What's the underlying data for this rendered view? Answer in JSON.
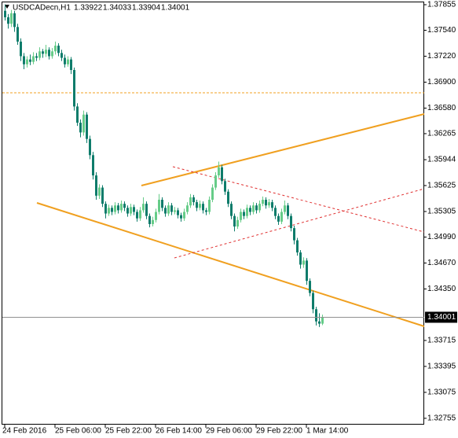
{
  "chart_data": {
    "type": "candlestick",
    "symbol": "USDCADecn,H1",
    "categories": [
      "24 Feb 2016",
      null,
      null,
      null,
      null,
      null,
      null,
      null,
      null,
      null,
      null,
      null,
      null,
      null,
      null,
      null,
      "25 Feb 06:00",
      null,
      null,
      null,
      null,
      null,
      null,
      null,
      null,
      null,
      null,
      null,
      null,
      null,
      null,
      null,
      "25 Feb 22:00",
      null,
      null,
      null,
      null,
      null,
      null,
      null,
      null,
      null,
      null,
      null,
      null,
      null,
      null,
      null,
      "26 Feb 14:00",
      null,
      null,
      null,
      null,
      null,
      null,
      null,
      null,
      null,
      null,
      null,
      null,
      null,
      null,
      null,
      "29 Feb 06:00",
      null,
      null,
      null,
      null,
      null,
      null,
      null,
      null,
      null,
      null,
      null,
      null,
      null,
      null,
      null,
      "29 Feb 22:00",
      null,
      null,
      null,
      null,
      null,
      null,
      null,
      null,
      null,
      null,
      null,
      null,
      null,
      null,
      null,
      "1 Mar 14:00",
      null,
      null,
      null,
      null,
      null
    ],
    "candles": [
      [
        1.3778,
        1.3786,
        1.3766,
        1.377
      ],
      [
        1.377,
        1.3774,
        1.3756,
        1.3762
      ],
      [
        1.3762,
        1.3779,
        1.3758,
        1.3775
      ],
      [
        1.3775,
        1.3778,
        1.3752,
        1.3758
      ],
      [
        1.3758,
        1.3762,
        1.3736,
        1.374
      ],
      [
        1.374,
        1.3744,
        1.3716,
        1.3722
      ],
      [
        1.3722,
        1.3726,
        1.3706,
        1.3712
      ],
      [
        1.3712,
        1.3722,
        1.3708,
        1.3718
      ],
      [
        1.3718,
        1.3724,
        1.3711,
        1.3715
      ],
      [
        1.3715,
        1.3727,
        1.3712,
        1.3722
      ],
      [
        1.3722,
        1.3726,
        1.3716,
        1.372
      ],
      [
        1.372,
        1.3733,
        1.3717,
        1.3728
      ],
      [
        1.3728,
        1.3731,
        1.372,
        1.3725
      ],
      [
        1.3725,
        1.3736,
        1.3721,
        1.373
      ],
      [
        1.373,
        1.3733,
        1.3718,
        1.3722
      ],
      [
        1.3722,
        1.3732,
        1.3719,
        1.3728
      ],
      [
        1.3728,
        1.374,
        1.3724,
        1.3735
      ],
      [
        1.3735,
        1.3738,
        1.3722,
        1.3726
      ],
      [
        1.3726,
        1.373,
        1.3716,
        1.372
      ],
      [
        1.372,
        1.3724,
        1.3708,
        1.3712
      ],
      [
        1.3712,
        1.3722,
        1.3709,
        1.3718
      ],
      [
        1.3718,
        1.3721,
        1.37,
        1.3705
      ],
      [
        1.3705,
        1.3708,
        1.3655,
        1.366
      ],
      [
        1.366,
        1.3664,
        1.3636,
        1.364
      ],
      [
        1.364,
        1.3644,
        1.3622,
        1.3628
      ],
      [
        1.3628,
        1.3655,
        1.3624,
        1.365
      ],
      [
        1.365,
        1.3653,
        1.3615,
        1.362
      ],
      [
        1.362,
        1.3624,
        1.3595,
        1.36
      ],
      [
        1.36,
        1.3604,
        1.357,
        1.3575
      ],
      [
        1.3575,
        1.3579,
        1.3545,
        1.355
      ],
      [
        1.355,
        1.3564,
        1.3546,
        1.356
      ],
      [
        1.356,
        1.3563,
        1.3536,
        1.354
      ],
      [
        1.354,
        1.3543,
        1.3522,
        1.3528
      ],
      [
        1.3528,
        1.3539,
        1.3525,
        1.3535
      ],
      [
        1.3535,
        1.3538,
        1.3526,
        1.353
      ],
      [
        1.353,
        1.3542,
        1.3527,
        1.3538
      ],
      [
        1.3538,
        1.3541,
        1.3528,
        1.3532
      ],
      [
        1.3532,
        1.3544,
        1.3529,
        1.354
      ],
      [
        1.354,
        1.3543,
        1.3531,
        1.3535
      ],
      [
        1.3535,
        1.3538,
        1.3524,
        1.3528
      ],
      [
        1.3528,
        1.354,
        1.3525,
        1.3536
      ],
      [
        1.3536,
        1.3539,
        1.3526,
        1.353
      ],
      [
        1.353,
        1.3533,
        1.3518,
        1.3522
      ],
      [
        1.3522,
        1.3536,
        1.3519,
        1.3532
      ],
      [
        1.3532,
        1.3548,
        1.3529,
        1.354
      ],
      [
        1.354,
        1.3543,
        1.3521,
        1.3525
      ],
      [
        1.3525,
        1.3528,
        1.3511,
        1.3515
      ],
      [
        1.3515,
        1.3524,
        1.3512,
        1.352
      ],
      [
        1.352,
        1.3534,
        1.3517,
        1.353
      ],
      [
        1.353,
        1.3552,
        1.3527,
        1.3545
      ],
      [
        1.3545,
        1.3548,
        1.3531,
        1.3535
      ],
      [
        1.3535,
        1.3538,
        1.3524,
        1.3528
      ],
      [
        1.3528,
        1.3542,
        1.3525,
        1.3538
      ],
      [
        1.3538,
        1.3541,
        1.3526,
        1.353
      ],
      [
        1.353,
        1.3536,
        1.3527,
        1.3532
      ],
      [
        1.3532,
        1.3535,
        1.3522,
        1.3526
      ],
      [
        1.3526,
        1.3529,
        1.3518,
        1.3522
      ],
      [
        1.3522,
        1.3534,
        1.3519,
        1.353
      ],
      [
        1.353,
        1.3542,
        1.3527,
        1.3538
      ],
      [
        1.3538,
        1.3552,
        1.3535,
        1.3548
      ],
      [
        1.3548,
        1.3551,
        1.3538,
        1.3542
      ],
      [
        1.3542,
        1.3545,
        1.3531,
        1.3535
      ],
      [
        1.3535,
        1.3544,
        1.3532,
        1.354
      ],
      [
        1.354,
        1.3543,
        1.3528,
        1.3532
      ],
      [
        1.3532,
        1.3535,
        1.3526,
        1.353
      ],
      [
        1.353,
        1.3549,
        1.3527,
        1.3545
      ],
      [
        1.3545,
        1.3564,
        1.3542,
        1.356
      ],
      [
        1.356,
        1.3579,
        1.3557,
        1.3575
      ],
      [
        1.3575,
        1.3592,
        1.3572,
        1.3585
      ],
      [
        1.3585,
        1.3588,
        1.3564,
        1.3568
      ],
      [
        1.3568,
        1.3571,
        1.3551,
        1.3555
      ],
      [
        1.3555,
        1.3558,
        1.3536,
        1.354
      ],
      [
        1.354,
        1.3543,
        1.3521,
        1.3525
      ],
      [
        1.3525,
        1.3528,
        1.3506,
        1.3512
      ],
      [
        1.3512,
        1.3524,
        1.3509,
        1.352
      ],
      [
        1.352,
        1.3534,
        1.3517,
        1.353
      ],
      [
        1.353,
        1.3533,
        1.3521,
        1.3525
      ],
      [
        1.3525,
        1.3539,
        1.3522,
        1.3535
      ],
      [
        1.3535,
        1.3538,
        1.3526,
        1.353
      ],
      [
        1.353,
        1.3542,
        1.3527,
        1.3538
      ],
      [
        1.3538,
        1.3541,
        1.3528,
        1.3532
      ],
      [
        1.3532,
        1.3544,
        1.3529,
        1.354
      ],
      [
        1.354,
        1.3549,
        1.3537,
        1.3545
      ],
      [
        1.3545,
        1.3548,
        1.3534,
        1.3538
      ],
      [
        1.3538,
        1.3546,
        1.3535,
        1.3542
      ],
      [
        1.3542,
        1.3545,
        1.3531,
        1.3535
      ],
      [
        1.3535,
        1.3538,
        1.3521,
        1.3525
      ],
      [
        1.3525,
        1.3528,
        1.3514,
        1.3518
      ],
      [
        1.3518,
        1.3534,
        1.3515,
        1.353
      ],
      [
        1.353,
        1.3544,
        1.3527,
        1.3538
      ],
      [
        1.3538,
        1.3541,
        1.3521,
        1.3525
      ],
      [
        1.3525,
        1.3528,
        1.3506,
        1.351
      ],
      [
        1.351,
        1.3513,
        1.349,
        1.3495
      ],
      [
        1.3495,
        1.3498,
        1.3476,
        1.348
      ],
      [
        1.348,
        1.3483,
        1.346,
        1.3465
      ],
      [
        1.3465,
        1.3474,
        1.3461,
        1.347
      ],
      [
        1.347,
        1.3473,
        1.344,
        1.3445
      ],
      [
        1.3445,
        1.3448,
        1.3426,
        1.343
      ],
      [
        1.343,
        1.3433,
        1.3405,
        1.341
      ],
      [
        1.341,
        1.3413,
        1.339,
        1.3395
      ],
      [
        1.3395,
        1.3405,
        1.3388,
        1.33922
      ],
      [
        1.33922,
        1.34033,
        1.33904,
        1.34001
      ]
    ],
    "up_color": "#66cc88",
    "down_color": "#0e7c6b",
    "ylim": [
      1.32677,
      1.37913
    ],
    "yticks": [
      1.37855,
      {
        "value": 1.3754,
        "label": "1.37540"
      },
      {
        "value": 1.3722,
        "label": "1.37220"
      },
      {
        "value": 1.369,
        "label": "1.36900"
      },
      {
        "value": 1.3658,
        "label": "1.36580"
      },
      1.36265,
      1.35944,
      1.35625,
      1.35305,
      {
        "value": 1.3499,
        "label": "1.34990"
      },
      {
        "value": 1.3467,
        "label": "1.34670"
      },
      {
        "value": 1.3435,
        "label": "1.34350"
      },
      1.33715,
      1.33395,
      1.33075,
      1.32755
    ]
  }
}
